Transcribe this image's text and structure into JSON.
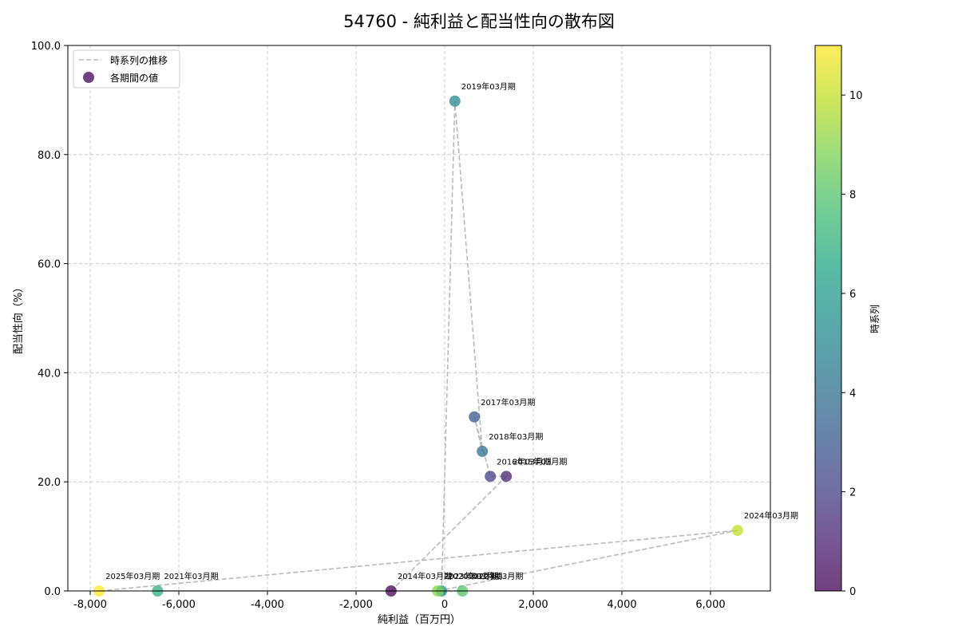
{
  "chart_data": {
    "type": "scatter",
    "title": "54760 - 純利益と配当性向の散布図",
    "xlabel": "純利益（百万円）",
    "ylabel": "配当性向（%）",
    "xlim": [
      -8500,
      7300
    ],
    "ylim": [
      0,
      100
    ],
    "xticks": [
      -8000,
      -6000,
      -4000,
      -2000,
      0,
      2000,
      4000,
      6000
    ],
    "xtick_labels": [
      "-8,000",
      "-6,000",
      "-4,000",
      "-2,000",
      "0",
      "2,000",
      "4,000",
      "6,000"
    ],
    "yticks": [
      0,
      20,
      40,
      60,
      80,
      100
    ],
    "ytick_labels": [
      "0.0",
      "20.0",
      "40.0",
      "60.0",
      "80.0",
      "100.0"
    ],
    "grid": true,
    "legend": {
      "position": "upper left",
      "entries": [
        "時系列の推移",
        "各期間の値"
      ]
    },
    "colorbar": {
      "label": "時系列",
      "ticks": [
        0,
        2,
        4,
        6,
        8,
        10
      ],
      "range": [
        0,
        11
      ],
      "colormap": "viridis"
    },
    "points": [
      {
        "label": "2014年03月期",
        "x": -1210,
        "y": 0.0,
        "t": 0
      },
      {
        "label": "2015年03月期",
        "x": 1390,
        "y": 21.0,
        "t": 1
      },
      {
        "label": "2016年03月期",
        "x": 1030,
        "y": 21.0,
        "t": 2
      },
      {
        "label": "2017年03月期",
        "x": 670,
        "y": 31.9,
        "t": 3
      },
      {
        "label": "2018年03月期",
        "x": 850,
        "y": 25.6,
        "t": 4
      },
      {
        "label": "2019年03月期",
        "x": 230,
        "y": 89.8,
        "t": 5
      },
      {
        "label": "2020年03月期",
        "x": -70,
        "y": 0.0,
        "t": 6
      },
      {
        "label": "2021年03月期",
        "x": -6480,
        "y": 0.0,
        "t": 7
      },
      {
        "label": "2022年03月期",
        "x": 400,
        "y": 0.0,
        "t": 8
      },
      {
        "label": "2023年03月期",
        "x": -160,
        "y": 0.0,
        "t": 9
      },
      {
        "label": "2024年03月期",
        "x": 6610,
        "y": 11.1,
        "t": 10
      },
      {
        "label": "2025年03月期",
        "x": -7800,
        "y": 0.0,
        "t": 11
      }
    ]
  },
  "colors": {
    "line": "#bbbbbb",
    "grid": "#cccccc",
    "axis": "#000000"
  }
}
